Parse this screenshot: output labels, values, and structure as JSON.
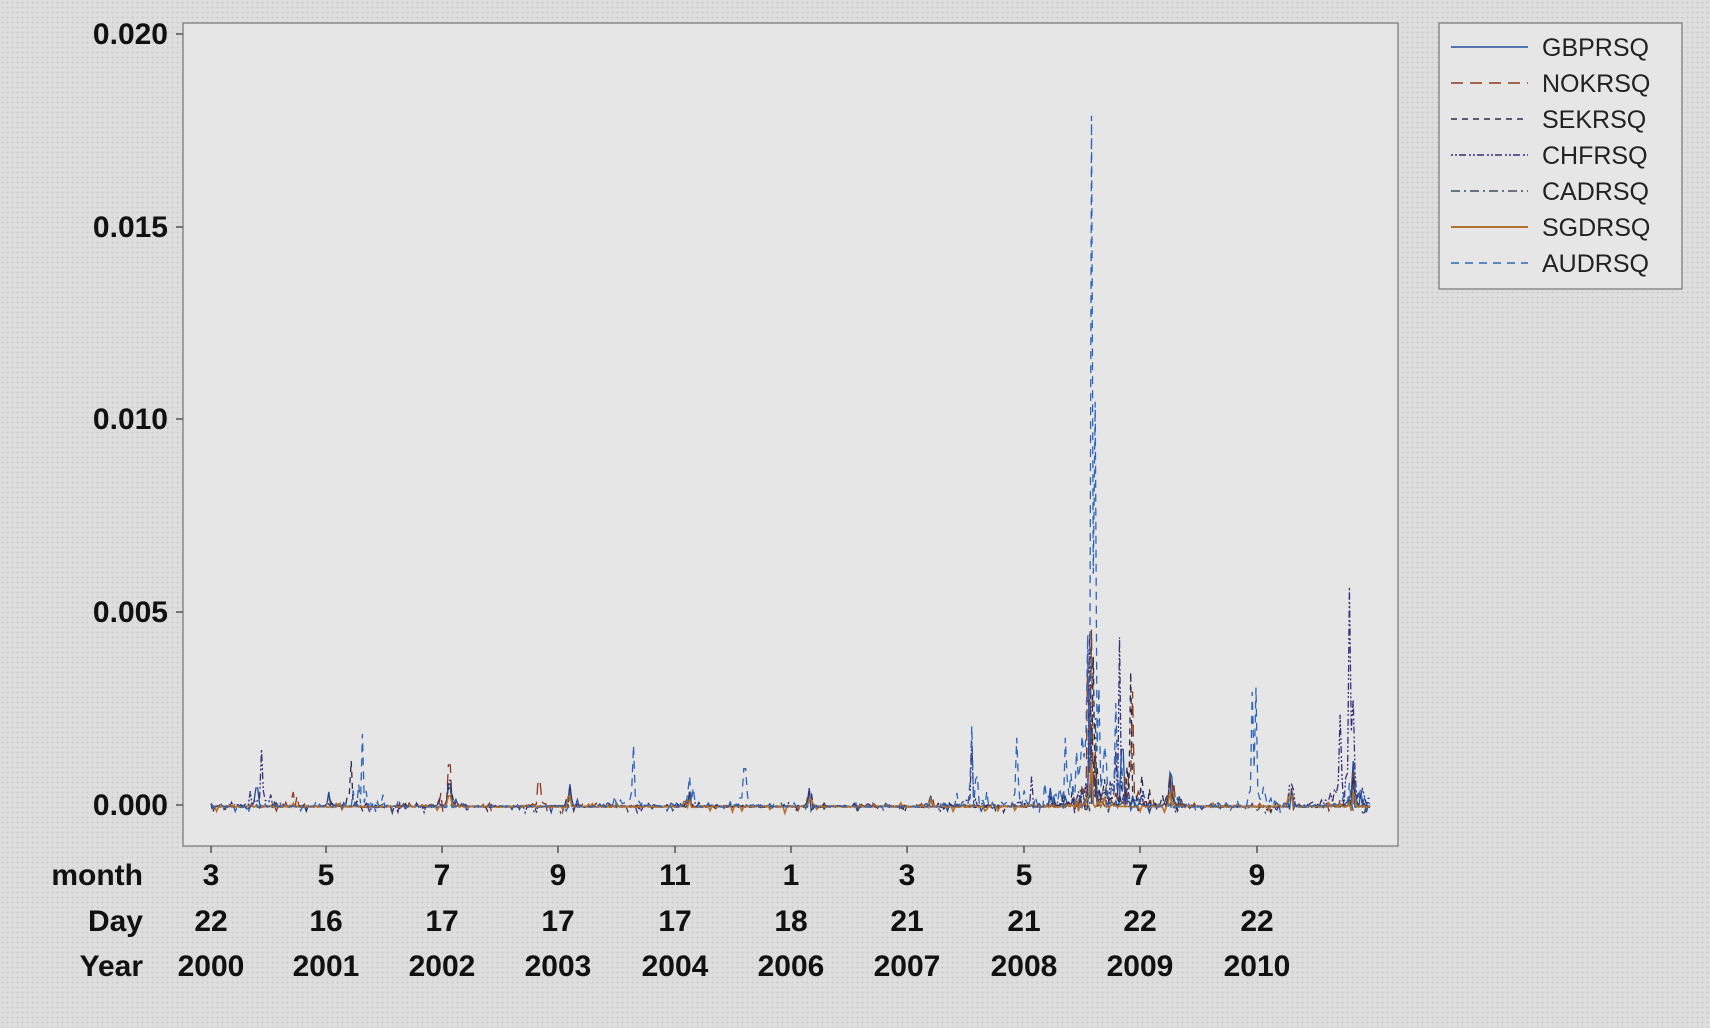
{
  "chart_data": {
    "type": "line",
    "title": "",
    "xlabel": "",
    "ylabel": "",
    "ylim": [
      -0.001,
      0.0203
    ],
    "y_ticks": [
      "0.000",
      "0.005",
      "0.010",
      "0.015",
      "0.020"
    ],
    "y_tick_values": [
      0,
      0.005,
      0.01,
      0.015,
      0.02
    ],
    "x_axis_rows": [
      {
        "name": "month",
        "labels": [
          "3",
          "5",
          "7",
          "9",
          "11",
          "1",
          "3",
          "5",
          "7",
          "9"
        ]
      },
      {
        "name": "Day",
        "labels": [
          "22",
          "16",
          "17",
          "17",
          "17",
          "18",
          "21",
          "21",
          "22",
          "22"
        ]
      },
      {
        "name": "Year",
        "labels": [
          "2000",
          "2001",
          "2002",
          "2003",
          "2004",
          "2006",
          "2007",
          "2008",
          "2009",
          "2010"
        ]
      }
    ],
    "grid": false,
    "legend_position": "top-right",
    "series": [
      {
        "name": "GBPRSQ",
        "color": "#1f4e9c",
        "dash": "solid-thin",
        "peaks": [
          [
            "2000-03-22",
            0.0001
          ],
          [
            "2000-09-01",
            0.0005
          ],
          [
            "2001-05-16",
            0.0004
          ],
          [
            "2002-07-17",
            0.0006
          ],
          [
            "2003-09-17",
            0.0006
          ],
          [
            "2004-11-17",
            0.0004
          ],
          [
            "2006-01-18",
            0.0005
          ],
          [
            "2007-03-21",
            0.0003
          ],
          [
            "2008-05-21",
            0.0005
          ],
          [
            "2008-10-10",
            0.0028
          ],
          [
            "2009-02-01",
            0.0015
          ],
          [
            "2009-07-22",
            0.0009
          ],
          [
            "2010-09-22",
            0.0005
          ],
          [
            "2011-05-01",
            0.0012
          ]
        ]
      },
      {
        "name": "NOKRSQ",
        "color": "#8b3a1e",
        "dash": "long-dash",
        "peaks": [
          [
            "2000-03-22",
            0.0001
          ],
          [
            "2001-01-10",
            0.0004
          ],
          [
            "2002-07-17",
            0.0011
          ],
          [
            "2003-06-01",
            0.0007
          ],
          [
            "2004-11-17",
            0.0004
          ],
          [
            "2006-01-18",
            0.0003
          ],
          [
            "2007-03-21",
            0.0003
          ],
          [
            "2008-10-15",
            0.0046
          ],
          [
            "2009-03-10",
            0.003
          ],
          [
            "2009-07-22",
            0.0009
          ],
          [
            "2010-09-22",
            0.0005
          ],
          [
            "2011-05-01",
            0.0009
          ]
        ]
      },
      {
        "name": "SEKRSQ",
        "color": "#2b2b4a",
        "dash": "dash",
        "peaks": [
          [
            "2000-03-22",
            0.0001
          ],
          [
            "2001-08-01",
            0.0012
          ],
          [
            "2002-07-17",
            0.0005
          ],
          [
            "2003-09-17",
            0.0005
          ],
          [
            "2004-11-17",
            0.0004
          ],
          [
            "2006-01-18",
            0.0004
          ],
          [
            "2007-03-21",
            0.0003
          ],
          [
            "2008-10-20",
            0.0039
          ],
          [
            "2009-03-01",
            0.0035
          ],
          [
            "2009-07-22",
            0.0008
          ],
          [
            "2010-09-22",
            0.0004
          ],
          [
            "2011-05-01",
            0.0008
          ]
        ]
      },
      {
        "name": "CHFRSQ",
        "color": "#3a2f7a",
        "dash": "dot-dash",
        "peaks": [
          [
            "2000-03-22",
            0.0001
          ],
          [
            "2000-09-15",
            0.0015
          ],
          [
            "2002-07-17",
            0.0007
          ],
          [
            "2003-09-17",
            0.0004
          ],
          [
            "2004-11-17",
            0.0004
          ],
          [
            "2006-01-18",
            0.0004
          ],
          [
            "2007-08-15",
            0.0017
          ],
          [
            "2008-03-17",
            0.0008
          ],
          [
            "2008-10-10",
            0.0045
          ],
          [
            "2009-01-20",
            0.0044
          ],
          [
            "2009-07-22",
            0.0008
          ],
          [
            "2010-09-22",
            0.0006
          ],
          [
            "2011-03-15",
            0.0024
          ],
          [
            "2011-04-20",
            0.0057
          ],
          [
            "2011-05-01",
            0.0028
          ]
        ]
      },
      {
        "name": "CADRSQ",
        "color": "#3d4e5e",
        "dash": "dash-dot",
        "peaks": [
          [
            "2000-03-22",
            0.0001
          ],
          [
            "2001-05-16",
            0.0003
          ],
          [
            "2002-07-17",
            0.0005
          ],
          [
            "2003-09-17",
            0.0004
          ],
          [
            "2004-11-17",
            0.0003
          ],
          [
            "2006-01-18",
            0.0003
          ],
          [
            "2007-03-21",
            0.0003
          ],
          [
            "2008-10-25",
            0.0024
          ],
          [
            "2009-07-22",
            0.0008
          ],
          [
            "2010-09-22",
            0.0004
          ],
          [
            "2011-05-01",
            0.0006
          ]
        ]
      },
      {
        "name": "SGDRSQ",
        "color": "#b5702c",
        "dash": "solid",
        "peaks": [
          [
            "2000-03-22",
            0.0001
          ],
          [
            "2002-07-17",
            0.0003
          ],
          [
            "2003-09-17",
            0.0003
          ],
          [
            "2004-11-17",
            0.0002
          ],
          [
            "2006-01-18",
            0.0002
          ],
          [
            "2007-03-21",
            0.0002
          ],
          [
            "2008-10-15",
            0.0012
          ],
          [
            "2009-07-22",
            0.0004
          ],
          [
            "2010-09-22",
            0.0003
          ],
          [
            "2011-05-01",
            0.0004
          ]
        ]
      },
      {
        "name": "AUDRSQ",
        "color": "#2d66b8",
        "dash": "med-dash",
        "peaks": [
          [
            "2000-03-22",
            0.0001
          ],
          [
            "2001-09-11",
            0.0019
          ],
          [
            "2004-05-01",
            0.0016
          ],
          [
            "2004-11-17",
            0.0008
          ],
          [
            "2005-06-01",
            0.001
          ],
          [
            "2007-08-16",
            0.0021
          ],
          [
            "2008-01-22",
            0.0018
          ],
          [
            "2008-10-15",
            0.0179
          ],
          [
            "2008-10-27",
            0.0105
          ],
          [
            "2009-01-10",
            0.0027
          ],
          [
            "2010-05-20",
            0.0031
          ],
          [
            "2011-05-01",
            0.0025
          ]
        ]
      }
    ]
  }
}
